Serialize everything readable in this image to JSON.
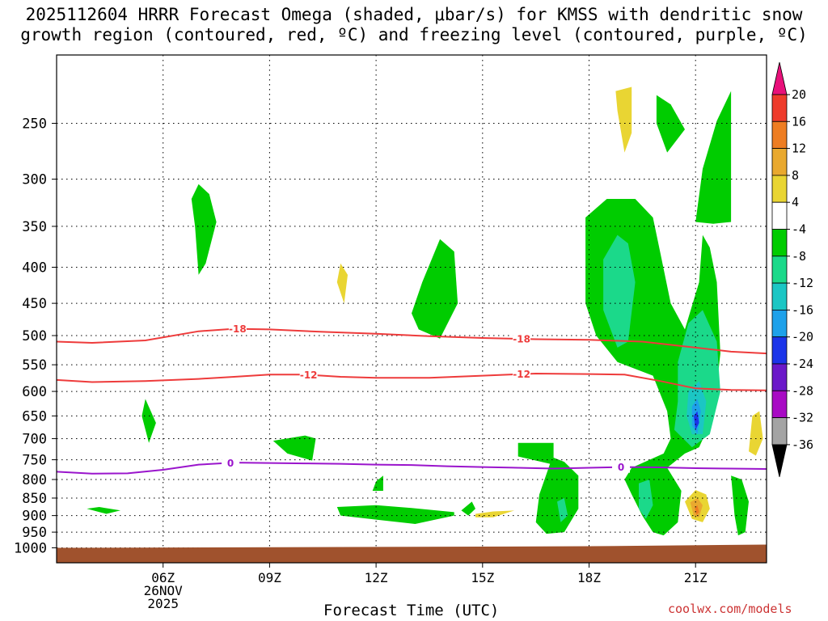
{
  "title": {
    "line1": "2025112604 HRRR Forecast Omega (shaded, μbar/s) for KMSS with dendritic snow",
    "line2": "growth region (contoured, red, ºC) and freezing level (contoured, purple, ºC)"
  },
  "credit": "coolwx.com/models",
  "chart_data": {
    "type": "heatmap",
    "xlabel": "Forecast Time (UTC)",
    "ylabel": "",
    "x_range_hours": [
      3,
      23
    ],
    "x_ticks": [
      {
        "hour": 6,
        "label": "06Z",
        "date_line": "26NOV",
        "year_line": "2025"
      },
      {
        "hour": 9,
        "label": "09Z"
      },
      {
        "hour": 12,
        "label": "12Z"
      },
      {
        "hour": 15,
        "label": "15Z"
      },
      {
        "hour": 18,
        "label": "18Z"
      },
      {
        "hour": 21,
        "label": "21Z"
      }
    ],
    "y_range_hpa": [
      1050,
      200
    ],
    "y_scale": "log-pressure",
    "y_ticks": [
      250,
      300,
      350,
      400,
      450,
      500,
      550,
      600,
      650,
      700,
      750,
      800,
      850,
      900,
      950,
      1000
    ],
    "grid": true,
    "colorbar": {
      "labels": [
        "20",
        "16",
        "12",
        "8",
        "4",
        "-4",
        "-8",
        "-12",
        "-16",
        "-20",
        "-24",
        "-28",
        "-32",
        "-36"
      ],
      "colors": [
        "#e8107a",
        "#ee3b2b",
        "#ee7d22",
        "#e9a92f",
        "#e9d533",
        "#ffffff",
        "#00cc00",
        "#1bd98a",
        "#1bc6c4",
        "#1ea1ea",
        "#1b34e9",
        "#6b18c9",
        "#a80ac4",
        "#a4a4a4",
        "#000000"
      ]
    },
    "contours": [
      {
        "label": "-18",
        "color": "#ee3b3b",
        "label_hours": [
          8.1,
          16.1
        ],
        "points": [
          [
            3,
            510
          ],
          [
            4,
            512
          ],
          [
            5.5,
            508
          ],
          [
            7,
            493
          ],
          [
            8,
            489
          ],
          [
            9,
            490
          ],
          [
            10.5,
            494
          ],
          [
            12,
            497
          ],
          [
            13.5,
            501
          ],
          [
            15,
            504
          ],
          [
            16.5,
            506
          ],
          [
            18,
            507
          ],
          [
            19.5,
            510
          ],
          [
            21,
            520
          ],
          [
            22,
            527
          ],
          [
            23,
            530
          ]
        ]
      },
      {
        "label": "-12",
        "color": "#ee3b3b",
        "label_hours": [
          10.1,
          16.1
        ],
        "points": [
          [
            3,
            578
          ],
          [
            4,
            582
          ],
          [
            5.5,
            580
          ],
          [
            7,
            576
          ],
          [
            8,
            572
          ],
          [
            9,
            568
          ],
          [
            10,
            568
          ],
          [
            11,
            572
          ],
          [
            12,
            574
          ],
          [
            13.5,
            574
          ],
          [
            15,
            570
          ],
          [
            16.5,
            566
          ],
          [
            18,
            567
          ],
          [
            19,
            568
          ],
          [
            20,
            580
          ],
          [
            21,
            594
          ],
          [
            22,
            597
          ],
          [
            23,
            598
          ]
        ]
      },
      {
        "label": "0",
        "color": "#9a15cc",
        "label_hours": [
          7.9,
          18.9
        ],
        "points": [
          [
            3,
            780
          ],
          [
            4,
            785
          ],
          [
            5,
            784
          ],
          [
            6,
            775
          ],
          [
            7,
            762
          ],
          [
            8,
            757
          ],
          [
            9,
            758
          ],
          [
            10,
            759
          ],
          [
            11,
            760
          ],
          [
            12,
            762
          ],
          [
            13,
            763
          ],
          [
            14,
            766
          ],
          [
            15,
            768
          ],
          [
            16,
            770
          ],
          [
            17,
            772
          ],
          [
            18,
            770
          ],
          [
            19,
            768
          ],
          [
            20,
            769
          ],
          [
            21,
            771
          ],
          [
            22,
            772
          ],
          [
            23,
            773
          ]
        ]
      }
    ],
    "shaded_regions": [
      {
        "value": -6,
        "polygon": [
          [
            7,
            305
          ],
          [
            7.3,
            315
          ],
          [
            7.5,
            345
          ],
          [
            7.2,
            395
          ],
          [
            7,
            410
          ],
          [
            6.9,
            350
          ],
          [
            6.8,
            320
          ]
        ]
      },
      {
        "value": -6,
        "polygon": [
          [
            13,
            465
          ],
          [
            13.3,
            420
          ],
          [
            13.8,
            365
          ],
          [
            14.2,
            380
          ],
          [
            14.3,
            450
          ],
          [
            13.8,
            505
          ],
          [
            13.2,
            490
          ]
        ]
      },
      {
        "value": -6,
        "polygon": [
          [
            5.4,
            650
          ],
          [
            5.5,
            615
          ],
          [
            5.8,
            665
          ],
          [
            5.6,
            710
          ]
        ]
      },
      {
        "value": -6,
        "polygon": [
          [
            3.85,
            880
          ],
          [
            4.2,
            875
          ],
          [
            4.8,
            885
          ],
          [
            4.4,
            895
          ]
        ]
      },
      {
        "value": -6,
        "polygon": [
          [
            9.1,
            705
          ],
          [
            10,
            693
          ],
          [
            10.3,
            700
          ],
          [
            10.2,
            752
          ],
          [
            9.5,
            735
          ]
        ]
      },
      {
        "value": -6,
        "polygon": [
          [
            12,
            805
          ],
          [
            12.2,
            790
          ],
          [
            12.2,
            830
          ],
          [
            11.9,
            830
          ]
        ]
      },
      {
        "value": -6,
        "polygon": [
          [
            10.9,
            875
          ],
          [
            12,
            870
          ],
          [
            13,
            878
          ],
          [
            14.2,
            890
          ],
          [
            14.2,
            900
          ],
          [
            13.1,
            925
          ],
          [
            12,
            912
          ],
          [
            11,
            900
          ]
        ]
      },
      {
        "value": -6,
        "polygon": [
          [
            14.7,
            860
          ],
          [
            14.8,
            880
          ],
          [
            14.6,
            900
          ],
          [
            14.4,
            885
          ]
        ]
      },
      {
        "value": -6,
        "polygon": [
          [
            16,
            710
          ],
          [
            17,
            710
          ],
          [
            17,
            745
          ],
          [
            17.3,
            755
          ],
          [
            17.7,
            790
          ],
          [
            17.7,
            880
          ],
          [
            17.3,
            950
          ],
          [
            16.8,
            955
          ],
          [
            16.5,
            920
          ],
          [
            16.6,
            840
          ],
          [
            16.9,
            760
          ],
          [
            16,
            742
          ]
        ]
      },
      {
        "value": 6,
        "polygon": [
          [
            14.8,
            895
          ],
          [
            15.3,
            888
          ],
          [
            15.9,
            885
          ],
          [
            15.3,
            905
          ],
          [
            14.8,
            905
          ]
        ]
      },
      {
        "value": 6,
        "polygon": [
          [
            18.75,
            225
          ],
          [
            19.2,
            222
          ],
          [
            19.2,
            258
          ],
          [
            19,
            275
          ],
          [
            18.8,
            240
          ]
        ]
      },
      {
        "value": 6,
        "polygon": [
          [
            11,
            395
          ],
          [
            11.2,
            410
          ],
          [
            11.1,
            450
          ],
          [
            10.9,
            420
          ]
        ]
      },
      {
        "value": -6,
        "polygon": [
          [
            19.9,
            228
          ],
          [
            20.3,
            235
          ],
          [
            20.7,
            255
          ],
          [
            20.2,
            275
          ],
          [
            19.9,
            250
          ]
        ]
      },
      {
        "value": -6,
        "polygon": [
          [
            17.9,
            340
          ],
          [
            18.5,
            320
          ],
          [
            19.3,
            320
          ],
          [
            19.8,
            340
          ],
          [
            20,
            380
          ],
          [
            20.3,
            450
          ],
          [
            20.7,
            490
          ],
          [
            21.1,
            420
          ],
          [
            21.2,
            360
          ],
          [
            21.4,
            375
          ],
          [
            21.6,
            420
          ],
          [
            21.7,
            530
          ],
          [
            21.5,
            650
          ],
          [
            21.1,
            720
          ],
          [
            20.7,
            735
          ],
          [
            20.2,
            770
          ],
          [
            20.6,
            830
          ],
          [
            20.5,
            920
          ],
          [
            20.1,
            960
          ],
          [
            19.8,
            950
          ],
          [
            19.5,
            900
          ],
          [
            19.2,
            840
          ],
          [
            19,
            800
          ],
          [
            19.2,
            770
          ],
          [
            20.1,
            735
          ],
          [
            20.3,
            700
          ],
          [
            20.2,
            640
          ],
          [
            19.8,
            570
          ],
          [
            18.8,
            545
          ],
          [
            18.2,
            500
          ],
          [
            17.9,
            450
          ]
        ]
      },
      {
        "value": -6,
        "polygon": [
          [
            21,
            345
          ],
          [
            21.2,
            290
          ],
          [
            21.6,
            248
          ],
          [
            22,
            225
          ],
          [
            22,
            345
          ],
          [
            21.5,
            347
          ]
        ]
      },
      {
        "value": -10,
        "polygon": [
          [
            18.4,
            390
          ],
          [
            18.8,
            360
          ],
          [
            19.1,
            370
          ],
          [
            19.3,
            420
          ],
          [
            19.1,
            510
          ],
          [
            18.8,
            520
          ],
          [
            18.4,
            460
          ]
        ]
      },
      {
        "value": -10,
        "polygon": [
          [
            20.5,
            545
          ],
          [
            20.8,
            480
          ],
          [
            21.2,
            460
          ],
          [
            21.6,
            510
          ],
          [
            21.7,
            600
          ],
          [
            21.4,
            690
          ],
          [
            20.9,
            720
          ],
          [
            20.4,
            680
          ],
          [
            20.5,
            620
          ]
        ]
      },
      {
        "value": -14,
        "polygon": [
          [
            20.8,
            600
          ],
          [
            21.1,
            580
          ],
          [
            21.3,
            620
          ],
          [
            21.2,
            690
          ],
          [
            20.9,
            690
          ],
          [
            20.75,
            650
          ]
        ]
      },
      {
        "value": -18,
        "polygon": [
          [
            20.9,
            630
          ],
          [
            21.05,
            615
          ],
          [
            21.15,
            640
          ],
          [
            21.05,
            690
          ],
          [
            20.9,
            670
          ]
        ]
      },
      {
        "value": -22,
        "polygon": [
          [
            20.95,
            650
          ],
          [
            21.05,
            640
          ],
          [
            21.1,
            665
          ],
          [
            21,
            680
          ]
        ]
      },
      {
        "value": -10,
        "polygon": [
          [
            19.4,
            810
          ],
          [
            19.7,
            800
          ],
          [
            19.8,
            870
          ],
          [
            19.6,
            910
          ],
          [
            19.4,
            880
          ]
        ]
      },
      {
        "value": -10,
        "polygon": [
          [
            17.1,
            860
          ],
          [
            17.3,
            850
          ],
          [
            17.4,
            900
          ],
          [
            17.2,
            920
          ]
        ]
      },
      {
        "value": 6,
        "polygon": [
          [
            20.7,
            860
          ],
          [
            21,
            828
          ],
          [
            21.3,
            840
          ],
          [
            21.4,
            880
          ],
          [
            21.2,
            920
          ],
          [
            20.9,
            910
          ]
        ]
      },
      {
        "value": 10,
        "polygon": [
          [
            20.85,
            862
          ],
          [
            21.05,
            850
          ],
          [
            21.2,
            870
          ],
          [
            21.1,
            905
          ],
          [
            20.95,
            900
          ]
        ]
      },
      {
        "value": 14,
        "polygon": [
          [
            20.98,
            878
          ],
          [
            21.05,
            870
          ],
          [
            21.1,
            890
          ],
          [
            21.02,
            898
          ]
        ]
      },
      {
        "value": -6,
        "polygon": [
          [
            22,
            790
          ],
          [
            22.3,
            800
          ],
          [
            22.5,
            860
          ],
          [
            22.4,
            950
          ],
          [
            22.2,
            960
          ],
          [
            22.1,
            900
          ]
        ]
      },
      {
        "value": 6,
        "polygon": [
          [
            22.6,
            650
          ],
          [
            22.8,
            640
          ],
          [
            22.9,
            700
          ],
          [
            22.7,
            740
          ],
          [
            22.5,
            730
          ]
        ]
      }
    ],
    "terrain_pressure_hpa": 1000
  }
}
